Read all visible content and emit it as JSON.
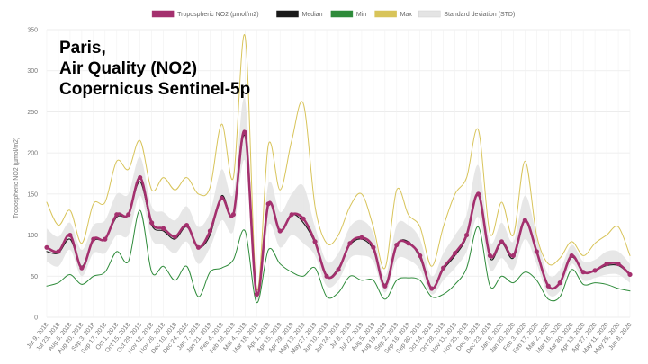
{
  "overlay": {
    "line1": "Paris,",
    "line2": "Air Quality (NO2)",
    "line3": "Copernicus Sentinel-5p"
  },
  "chart_data": {
    "type": "line",
    "ylabel": "Tropospheric NO2 (µmol/m2)",
    "ylim": [
      0,
      350
    ],
    "yticks": [
      0,
      50,
      100,
      150,
      200,
      250,
      300,
      350
    ],
    "grid": true,
    "legend_position": "top",
    "legend": [
      {
        "label": "Tropospheric NO2 (µmol/m2)",
        "color": "#a4306e"
      },
      {
        "label": "Median",
        "color": "#1a1a1a"
      },
      {
        "label": "Min",
        "color": "#2e8b3a"
      },
      {
        "label": "Max",
        "color": "#d8c45a"
      },
      {
        "label": "Standard deviation (STD)",
        "color": "#e4e4e4"
      }
    ],
    "x_tick_labels": [
      "Jul 9, 2018",
      "Jul 23, 2018",
      "Aug 6, 2018",
      "Aug 20, 2018",
      "Sep 3, 2018",
      "Sep 17, 2018",
      "Oct 1, 2018",
      "Oct 15, 2018",
      "Oct 29, 2018",
      "Nov 12, 2018",
      "Nov 26, 2018",
      "Dec 10, 2018",
      "Dec 24, 2018",
      "Jan 7, 2019",
      "Jan 21, 2019",
      "Feb 4, 2019",
      "Feb 18, 2019",
      "Mar 4, 2019",
      "Mar 18, 2019",
      "Apr 1, 2019",
      "Apr 15, 2019",
      "Apr 29, 2019",
      "May 13, 2019",
      "May 27, 2019",
      "Jun 10, 2019",
      "Jun 24, 2019",
      "Jul 8, 2019",
      "Jul 22, 2019",
      "Aug 5, 2019",
      "Aug 19, 2019",
      "Sep 2, 2019",
      "Sep 16, 2019",
      "Sep 30, 2019",
      "Oct 14, 2019",
      "Oct 28, 2019",
      "Nov 11, 2019",
      "Nov 25, 2019",
      "Dec 9, 2019",
      "Dec 23, 2019",
      "Jan 6, 2020",
      "Jan 20, 2020",
      "Feb 3, 2020",
      "Feb 17, 2020",
      "Mar 2, 2020",
      "Mar 16, 2020",
      "Mar 30, 2020",
      "Apr 13, 2020",
      "Apr 27, 2020",
      "May 11, 2020",
      "May 25, 2020",
      "Jun 8, 2020"
    ],
    "series": [
      {
        "name": "Tropospheric NO2 (µmol/m2)",
        "color": "#a4306e",
        "values": [
          85,
          80,
          100,
          60,
          95,
          95,
          125,
          125,
          170,
          115,
          108,
          98,
          112,
          85,
          105,
          145,
          125,
          225,
          28,
          138,
          105,
          125,
          120,
          92,
          50,
          58,
          90,
          97,
          85,
          38,
          88,
          90,
          75,
          35,
          60,
          78,
          100,
          150,
          75,
          92,
          75,
          118,
          80,
          38,
          42,
          75,
          55,
          57,
          65,
          65,
          52
        ]
      },
      {
        "name": "Median",
        "color": "#1a1a1a",
        "values": [
          80,
          78,
          95,
          62,
          93,
          95,
          122,
          125,
          165,
          112,
          105,
          95,
          110,
          85,
          100,
          148,
          125,
          220,
          28,
          138,
          105,
          125,
          115,
          90,
          50,
          60,
          88,
          95,
          82,
          40,
          88,
          92,
          72,
          35,
          58,
          75,
          98,
          150,
          72,
          90,
          72,
          118,
          80,
          38,
          42,
          73,
          55,
          57,
          63,
          63,
          52
        ]
      },
      {
        "name": "Min",
        "color": "#2e8b3a",
        "values": [
          38,
          42,
          52,
          40,
          50,
          55,
          80,
          68,
          130,
          55,
          62,
          45,
          62,
          25,
          55,
          60,
          70,
          105,
          18,
          82,
          65,
          55,
          50,
          60,
          25,
          30,
          50,
          45,
          45,
          22,
          45,
          48,
          45,
          25,
          28,
          40,
          60,
          110,
          38,
          50,
          42,
          55,
          45,
          22,
          25,
          58,
          40,
          42,
          40,
          35,
          32
        ]
      },
      {
        "name": "Max",
        "color": "#d8c45a",
        "values": [
          140,
          112,
          130,
          90,
          138,
          140,
          190,
          180,
          215,
          155,
          170,
          155,
          170,
          150,
          158,
          235,
          170,
          342,
          35,
          210,
          155,
          215,
          260,
          135,
          90,
          100,
          135,
          150,
          110,
          60,
          155,
          125,
          110,
          62,
          110,
          150,
          170,
          228,
          102,
          140,
          100,
          190,
          100,
          65,
          72,
          92,
          75,
          90,
          100,
          110,
          75
        ]
      },
      {
        "name": "Standard deviation (STD)",
        "color": "#e4e4e4",
        "upper": [
          108,
          98,
          115,
          82,
          112,
          118,
          150,
          150,
          195,
          135,
          128,
          118,
          135,
          110,
          128,
          180,
          150,
          265,
          32,
          162,
          128,
          150,
          160,
          110,
          68,
          78,
          110,
          118,
          102,
          50,
          112,
          112,
          95,
          50,
          78,
          100,
          125,
          185,
          92,
          115,
          92,
          148,
          100,
          52,
          58,
          88,
          68,
          70,
          80,
          80,
          65
        ],
        "lower": [
          68,
          62,
          82,
          50,
          78,
          78,
          100,
          100,
          148,
          95,
          88,
          78,
          92,
          65,
          85,
          118,
          105,
          190,
          22,
          112,
          85,
          100,
          90,
          75,
          38,
          45,
          72,
          75,
          68,
          30,
          70,
          70,
          58,
          28,
          45,
          60,
          80,
          122,
          58,
          72,
          58,
          95,
          65,
          28,
          32,
          65,
          45,
          48,
          52,
          52,
          42
        ]
      }
    ]
  }
}
